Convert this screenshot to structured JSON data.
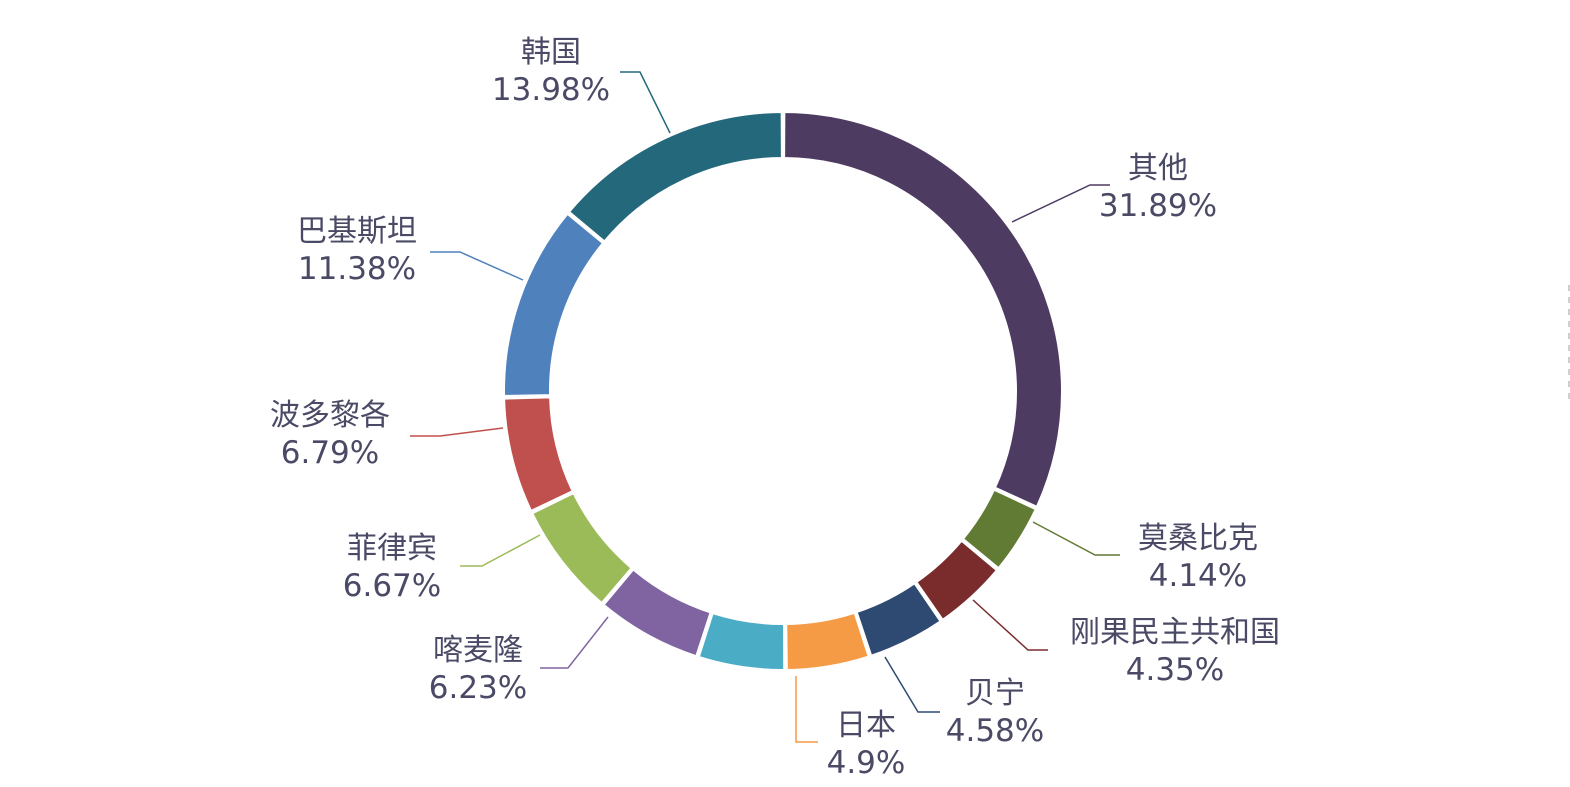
{
  "chart_data": {
    "type": "pie",
    "variant": "donut",
    "slices": [
      {
        "name": "其他",
        "value": 31.89,
        "label": "31.89%",
        "color": "#4e3b62"
      },
      {
        "name": "莫桑比克",
        "value": 4.14,
        "label": "4.14%",
        "color": "#617a34"
      },
      {
        "name": "刚果民主共和国",
        "value": 4.35,
        "label": "4.35%",
        "color": "#7a2c2c"
      },
      {
        "name": "贝宁",
        "value": 4.58,
        "label": "4.58%",
        "color": "#2e4a72"
      },
      {
        "name": "日本",
        "value": 4.9,
        "label": "4.9%",
        "color": "#f59a45"
      },
      {
        "name": "",
        "value": 5.1,
        "label": "",
        "color": "#4bacc6"
      },
      {
        "name": "喀麦隆",
        "value": 6.23,
        "label": "6.23%",
        "color": "#8064a2"
      },
      {
        "name": "菲律宾",
        "value": 6.67,
        "label": "6.67%",
        "color": "#9bbb59"
      },
      {
        "name": "波多黎各",
        "value": 6.79,
        "label": "6.79%",
        "color": "#c0504d"
      },
      {
        "name": "巴基斯坦",
        "value": 11.38,
        "label": "11.38%",
        "color": "#4f81bd"
      },
      {
        "name": "韩国",
        "value": 13.98,
        "label": "13.98%",
        "color": "#24687b"
      }
    ],
    "label_text_color": "#4a4a66",
    "legend": "none"
  }
}
